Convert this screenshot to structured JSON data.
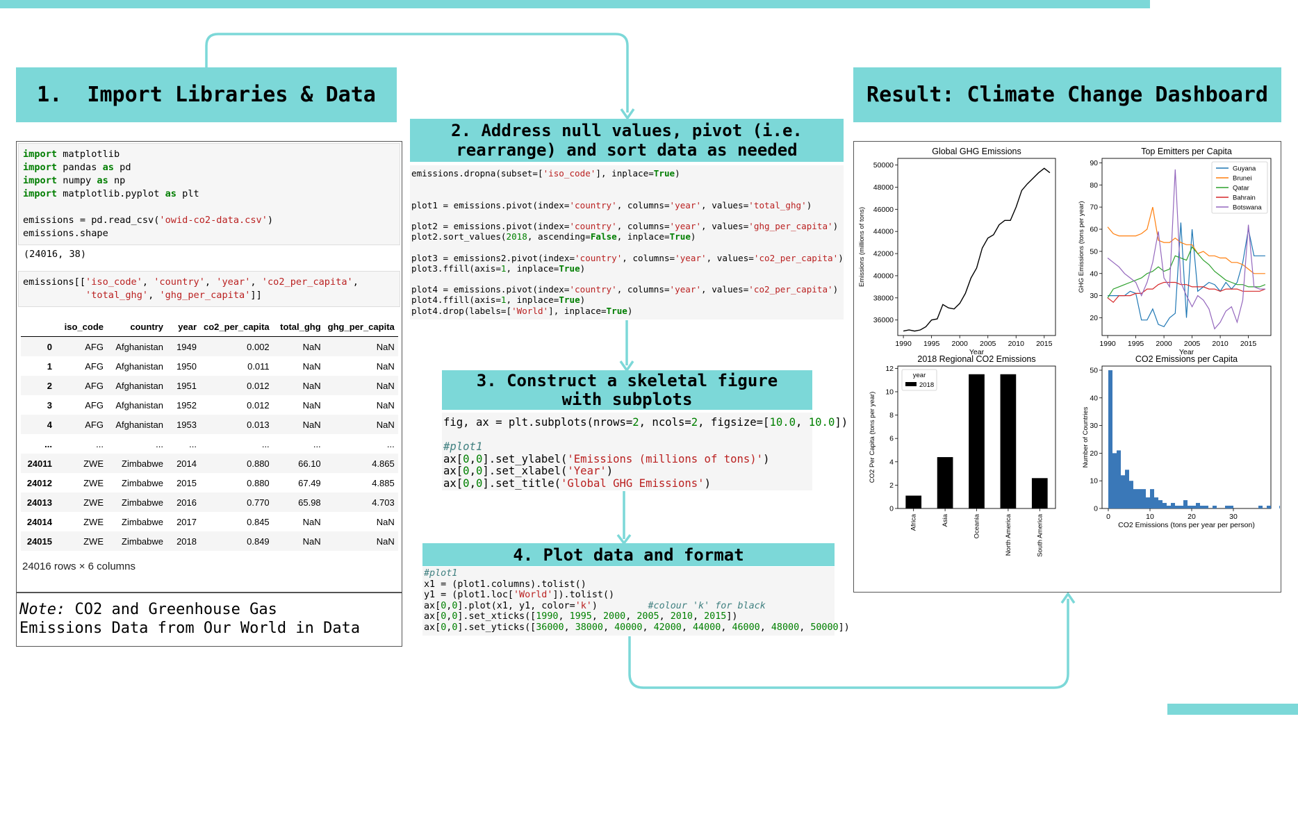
{
  "colors": {
    "accent": "#7cd8d8",
    "code_keyword": "#007e00",
    "code_string": "#ba2121"
  },
  "steps": {
    "step1": "1.  Import Libraries & Data",
    "step2_line1": "2. Address null values, pivot (i.e.",
    "step2_line2": "rearrange) and sort data as needed",
    "step3_line1": "3. Construct a skeletal figure",
    "step3_line2": "with subplots",
    "step4": "4. Plot data and format",
    "result": "Result: Climate Change Dashboard"
  },
  "notebook": {
    "imports": [
      {
        "kw": "import",
        "mod": "matplotlib",
        "as": "",
        "alias": ""
      },
      {
        "kw": "import",
        "mod": "pandas",
        "as": "as",
        "alias": "pd"
      },
      {
        "kw": "import",
        "mod": "numpy",
        "as": "as",
        "alias": "np"
      },
      {
        "kw": "import",
        "mod": "matplotlib.pyplot",
        "as": "as",
        "alias": "plt"
      }
    ],
    "read_pre": "emissions = pd.read_csv(",
    "read_str": "'owid-co2-data.csv'",
    "read_post": ")",
    "shape_line": "emissions.shape",
    "shape_out": "(24016, 38)",
    "select_pre": "emissions[[",
    "select_s1": "'iso_code'",
    "select_s2": "'country'",
    "select_s3": "'year'",
    "select_s4": "'co2_per_capita'",
    "select_s5": "'total_ghg'",
    "select_s6": "'ghg_per_capita'",
    "table": {
      "columns": [
        "",
        "iso_code",
        "country",
        "year",
        "co2_per_capita",
        "total_ghg",
        "ghg_per_capita"
      ],
      "rows": [
        [
          "0",
          "AFG",
          "Afghanistan",
          "1949",
          "0.002",
          "NaN",
          "NaN"
        ],
        [
          "1",
          "AFG",
          "Afghanistan",
          "1950",
          "0.011",
          "NaN",
          "NaN"
        ],
        [
          "2",
          "AFG",
          "Afghanistan",
          "1951",
          "0.012",
          "NaN",
          "NaN"
        ],
        [
          "3",
          "AFG",
          "Afghanistan",
          "1952",
          "0.012",
          "NaN",
          "NaN"
        ],
        [
          "4",
          "AFG",
          "Afghanistan",
          "1953",
          "0.013",
          "NaN",
          "NaN"
        ],
        [
          "...",
          "...",
          "...",
          "...",
          "...",
          "...",
          "..."
        ],
        [
          "24011",
          "ZWE",
          "Zimbabwe",
          "2014",
          "0.880",
          "66.10",
          "4.865"
        ],
        [
          "24012",
          "ZWE",
          "Zimbabwe",
          "2015",
          "0.880",
          "67.49",
          "4.885"
        ],
        [
          "24013",
          "ZWE",
          "Zimbabwe",
          "2016",
          "0.770",
          "65.98",
          "4.703"
        ],
        [
          "24014",
          "ZWE",
          "Zimbabwe",
          "2017",
          "0.845",
          "NaN",
          "NaN"
        ],
        [
          "24015",
          "ZWE",
          "Zimbabwe",
          "2018",
          "0.849",
          "NaN",
          "NaN"
        ]
      ]
    },
    "row_count": "24016 rows × 6 columns"
  },
  "note": {
    "label": "Note:",
    "text_line1": " CO2 and Greenhouse Gas",
    "text_line2": "Emissions Data from Our World in Data"
  },
  "code2": {
    "dropna_pre": "emissions.dropna(subset=[",
    "dropna_str": "'iso_code'",
    "dropna_mid": "], inplace=",
    "true": "True",
    "false": "False",
    "p1_pre": "plot1 = emissions.pivot(index=",
    "p1_a": "'country'",
    "p1_b": "'year'",
    "p1_c": "'total_ghg'",
    "p2_pre": "plot2 = emissions.pivot(index=",
    "p2_a": "'country'",
    "p2_b": "'year'",
    "p2_c": "'ghg_per_capita'",
    "p2_sort_pre": "plot2.sort_values(",
    "p2_sort_num": "2018",
    "p2_sort_mid": ", ascending=",
    "p2_sort_mid2": ", inplace=",
    "p3_pre": "plot3 = emissions2.pivot(index=",
    "p3_a": "'country'",
    "p3_b": "'year'",
    "p3_c": "'co2_per_capita'",
    "ffill_pre": "plot3.ffill(axis=",
    "one": "1",
    "ffill_mid": ", inplace=",
    "p4_pre": "plot4 = emissions.pivot(index=",
    "p4_a": "'country'",
    "p4_b": "'year'",
    "p4_c": "'co2_per_capita'",
    "ffill4_pre": "plot4.ffill(axis=",
    "drop_pre": "plot4.drop(labels=[",
    "drop_str": "'World'",
    "drop_mid": "], inplace=",
    "columns_kw": ", columns=",
    "values_kw": ", values=",
    "close": ")"
  },
  "code3": {
    "l1_pre": "fig, ax = plt.subplots(nrows=",
    "n2": "2",
    "l1_mid1": ", ncols=",
    "l1_mid2": ", figsize=[",
    "f10": "10.0",
    "l1_comma": ", ",
    "l1_end": "])",
    "comment": "#plot1",
    "ax_pre": "ax[",
    "zero": "0",
    "comma": ",",
    "ax_close": "]",
    "ylab_fn": ".set_ylabel(",
    "ylab_str": "'Emissions (millions of tons)'",
    "xlab_fn": ".set_xlabel(",
    "xlab_str": "'Year'",
    "title_fn": ".set_title(",
    "title_str": "'Global GHG Emissions'",
    "paren": ")"
  },
  "code4": {
    "comment": "#plot1",
    "x1": "x1 = (plot1.columns).tolist()",
    "y1_pre": "y1 = (plot1.loc[",
    "y1_str": "'World'",
    "y1_post": "]).tolist()",
    "plot_pre": "].plot(x1, y1, color=",
    "plot_str": "'k'",
    "plot_post": ")",
    "plot_cmt": "#colour 'k' for black",
    "xt_fn": "].set_xticks([",
    "xt_vals": [
      "1990",
      "1995",
      "2000",
      "2005",
      "2010",
      "2015"
    ],
    "yt_fn": "].set_yticks([",
    "yt_vals": [
      "36000",
      "38000",
      "40000",
      "42000",
      "44000",
      "46000",
      "48000",
      "50000"
    ],
    "end": "])",
    "ax": "ax[",
    "zero": "0",
    "sep": ", "
  },
  "chart_data": [
    {
      "type": "line",
      "title": "Global GHG Emissions",
      "xlabel": "Year",
      "ylabel": "Emissions (millions of tons)",
      "x": [
        1990,
        1991,
        1992,
        1993,
        1994,
        1995,
        1996,
        1997,
        1998,
        1999,
        2000,
        2001,
        2002,
        2003,
        2004,
        2005,
        2006,
        2007,
        2008,
        2009,
        2010,
        2011,
        2012,
        2013,
        2014,
        2015,
        2016
      ],
      "values": [
        35000,
        35100,
        35000,
        35100,
        35400,
        36000,
        36100,
        37400,
        37100,
        37000,
        37500,
        38400,
        39800,
        40700,
        42500,
        43400,
        43700,
        44600,
        45000,
        45000,
        46200,
        47700,
        48300,
        48800,
        49300,
        49700,
        49300
      ],
      "xticks": [
        1990,
        1995,
        2000,
        2005,
        2010,
        2015
      ],
      "yticks": [
        36000,
        38000,
        40000,
        42000,
        44000,
        46000,
        48000,
        50000
      ],
      "xlim": [
        1989,
        2017
      ],
      "ylim": [
        34600,
        50600
      ],
      "color": "#000000"
    },
    {
      "type": "line",
      "title": "Top Emitters per Capita",
      "xlabel": "Year",
      "ylabel": "GHG Emissions (tons per year)",
      "x": [
        1990,
        1991,
        1992,
        1993,
        1994,
        1995,
        1996,
        1997,
        1998,
        1999,
        2000,
        2001,
        2002,
        2003,
        2004,
        2005,
        2006,
        2007,
        2008,
        2009,
        2010,
        2011,
        2012,
        2013,
        2014,
        2015,
        2016,
        2017,
        2018
      ],
      "series": [
        {
          "name": "Guyana",
          "color": "#1f77b4",
          "values": [
            30,
            30,
            30,
            30,
            32,
            31,
            19,
            19,
            24,
            17,
            16,
            20,
            22,
            63,
            20,
            60,
            32,
            34,
            36,
            35,
            32,
            36,
            33,
            36,
            45,
            60,
            48,
            48,
            48
          ]
        },
        {
          "name": "Brunei",
          "color": "#ff7f0e",
          "values": [
            61,
            58,
            57,
            57,
            57,
            57,
            58,
            60,
            70,
            55,
            54,
            54,
            56,
            54,
            53,
            53,
            49,
            50,
            48,
            48,
            47,
            47,
            45,
            45,
            44,
            42,
            40,
            40,
            40
          ]
        },
        {
          "name": "Qatar",
          "color": "#2ca02c",
          "values": [
            29,
            33,
            34,
            35,
            36,
            37,
            38,
            40,
            41,
            43,
            41,
            42,
            48,
            47,
            46,
            52,
            49,
            46,
            44,
            41,
            39,
            37,
            36,
            35,
            35,
            34,
            34,
            34,
            35
          ]
        },
        {
          "name": "Bahrain",
          "color": "#d62728",
          "values": [
            29,
            27,
            30,
            30,
            30,
            31,
            31,
            33,
            33,
            35,
            36,
            36,
            36,
            35,
            35,
            34,
            34,
            34,
            33,
            33,
            32,
            33,
            33,
            33,
            32,
            32,
            32,
            32,
            33
          ]
        },
        {
          "name": "Botswana",
          "color": "#9467bd",
          "values": [
            47,
            45,
            43,
            40,
            38,
            36,
            30,
            36,
            45,
            59,
            38,
            34,
            87,
            36,
            30,
            25,
            30,
            28,
            24,
            15,
            18,
            23,
            25,
            18,
            28,
            62,
            34,
            33,
            33
          ]
        }
      ],
      "xticks": [
        1990,
        1995,
        2000,
        2005,
        2010,
        2015
      ],
      "yticks": [
        20,
        30,
        40,
        50,
        60,
        70,
        80,
        90
      ],
      "xlim": [
        1989,
        2019
      ],
      "ylim": [
        12,
        92
      ],
      "legend": "top-right"
    },
    {
      "type": "bar",
      "title": "2018 Regional CO2 Emissions",
      "xlabel": "",
      "ylabel": "CO2 Per Capita (tons per year)",
      "categories": [
        "Africa",
        "Asia",
        "Oceania",
        "North America",
        "South America"
      ],
      "values": [
        1.1,
        4.4,
        11.5,
        11.5,
        2.6
      ],
      "yticks": [
        0,
        2,
        4,
        6,
        8,
        10,
        12
      ],
      "ylim": [
        0,
        12.2
      ],
      "legend_title": "year",
      "series": [
        {
          "name": "2018",
          "color": "#000000"
        }
      ],
      "legend": "top-left"
    },
    {
      "type": "bar",
      "title": "CO2 Emissions per Capita",
      "xlabel": "CO2 Emissions (tons per year per person)",
      "ylabel": "Number of Countries",
      "bin_width": 1,
      "bins_start": 0,
      "counts": [
        50,
        20,
        21,
        12,
        14,
        10,
        7,
        7,
        7,
        4,
        7,
        4,
        3,
        2,
        1,
        2,
        1,
        1,
        3,
        1,
        1,
        2,
        1,
        1,
        0,
        1,
        0,
        0,
        1,
        1,
        0,
        0,
        0,
        0,
        0,
        0,
        1,
        0,
        1,
        0,
        0,
        1
      ],
      "xticks": [
        0,
        10,
        20,
        30
      ],
      "yticks": [
        0,
        10,
        20,
        30,
        40,
        50
      ],
      "xlim": [
        -1.5,
        39
      ],
      "ylim": [
        0,
        51.5
      ],
      "color": "#3a78b8"
    }
  ]
}
